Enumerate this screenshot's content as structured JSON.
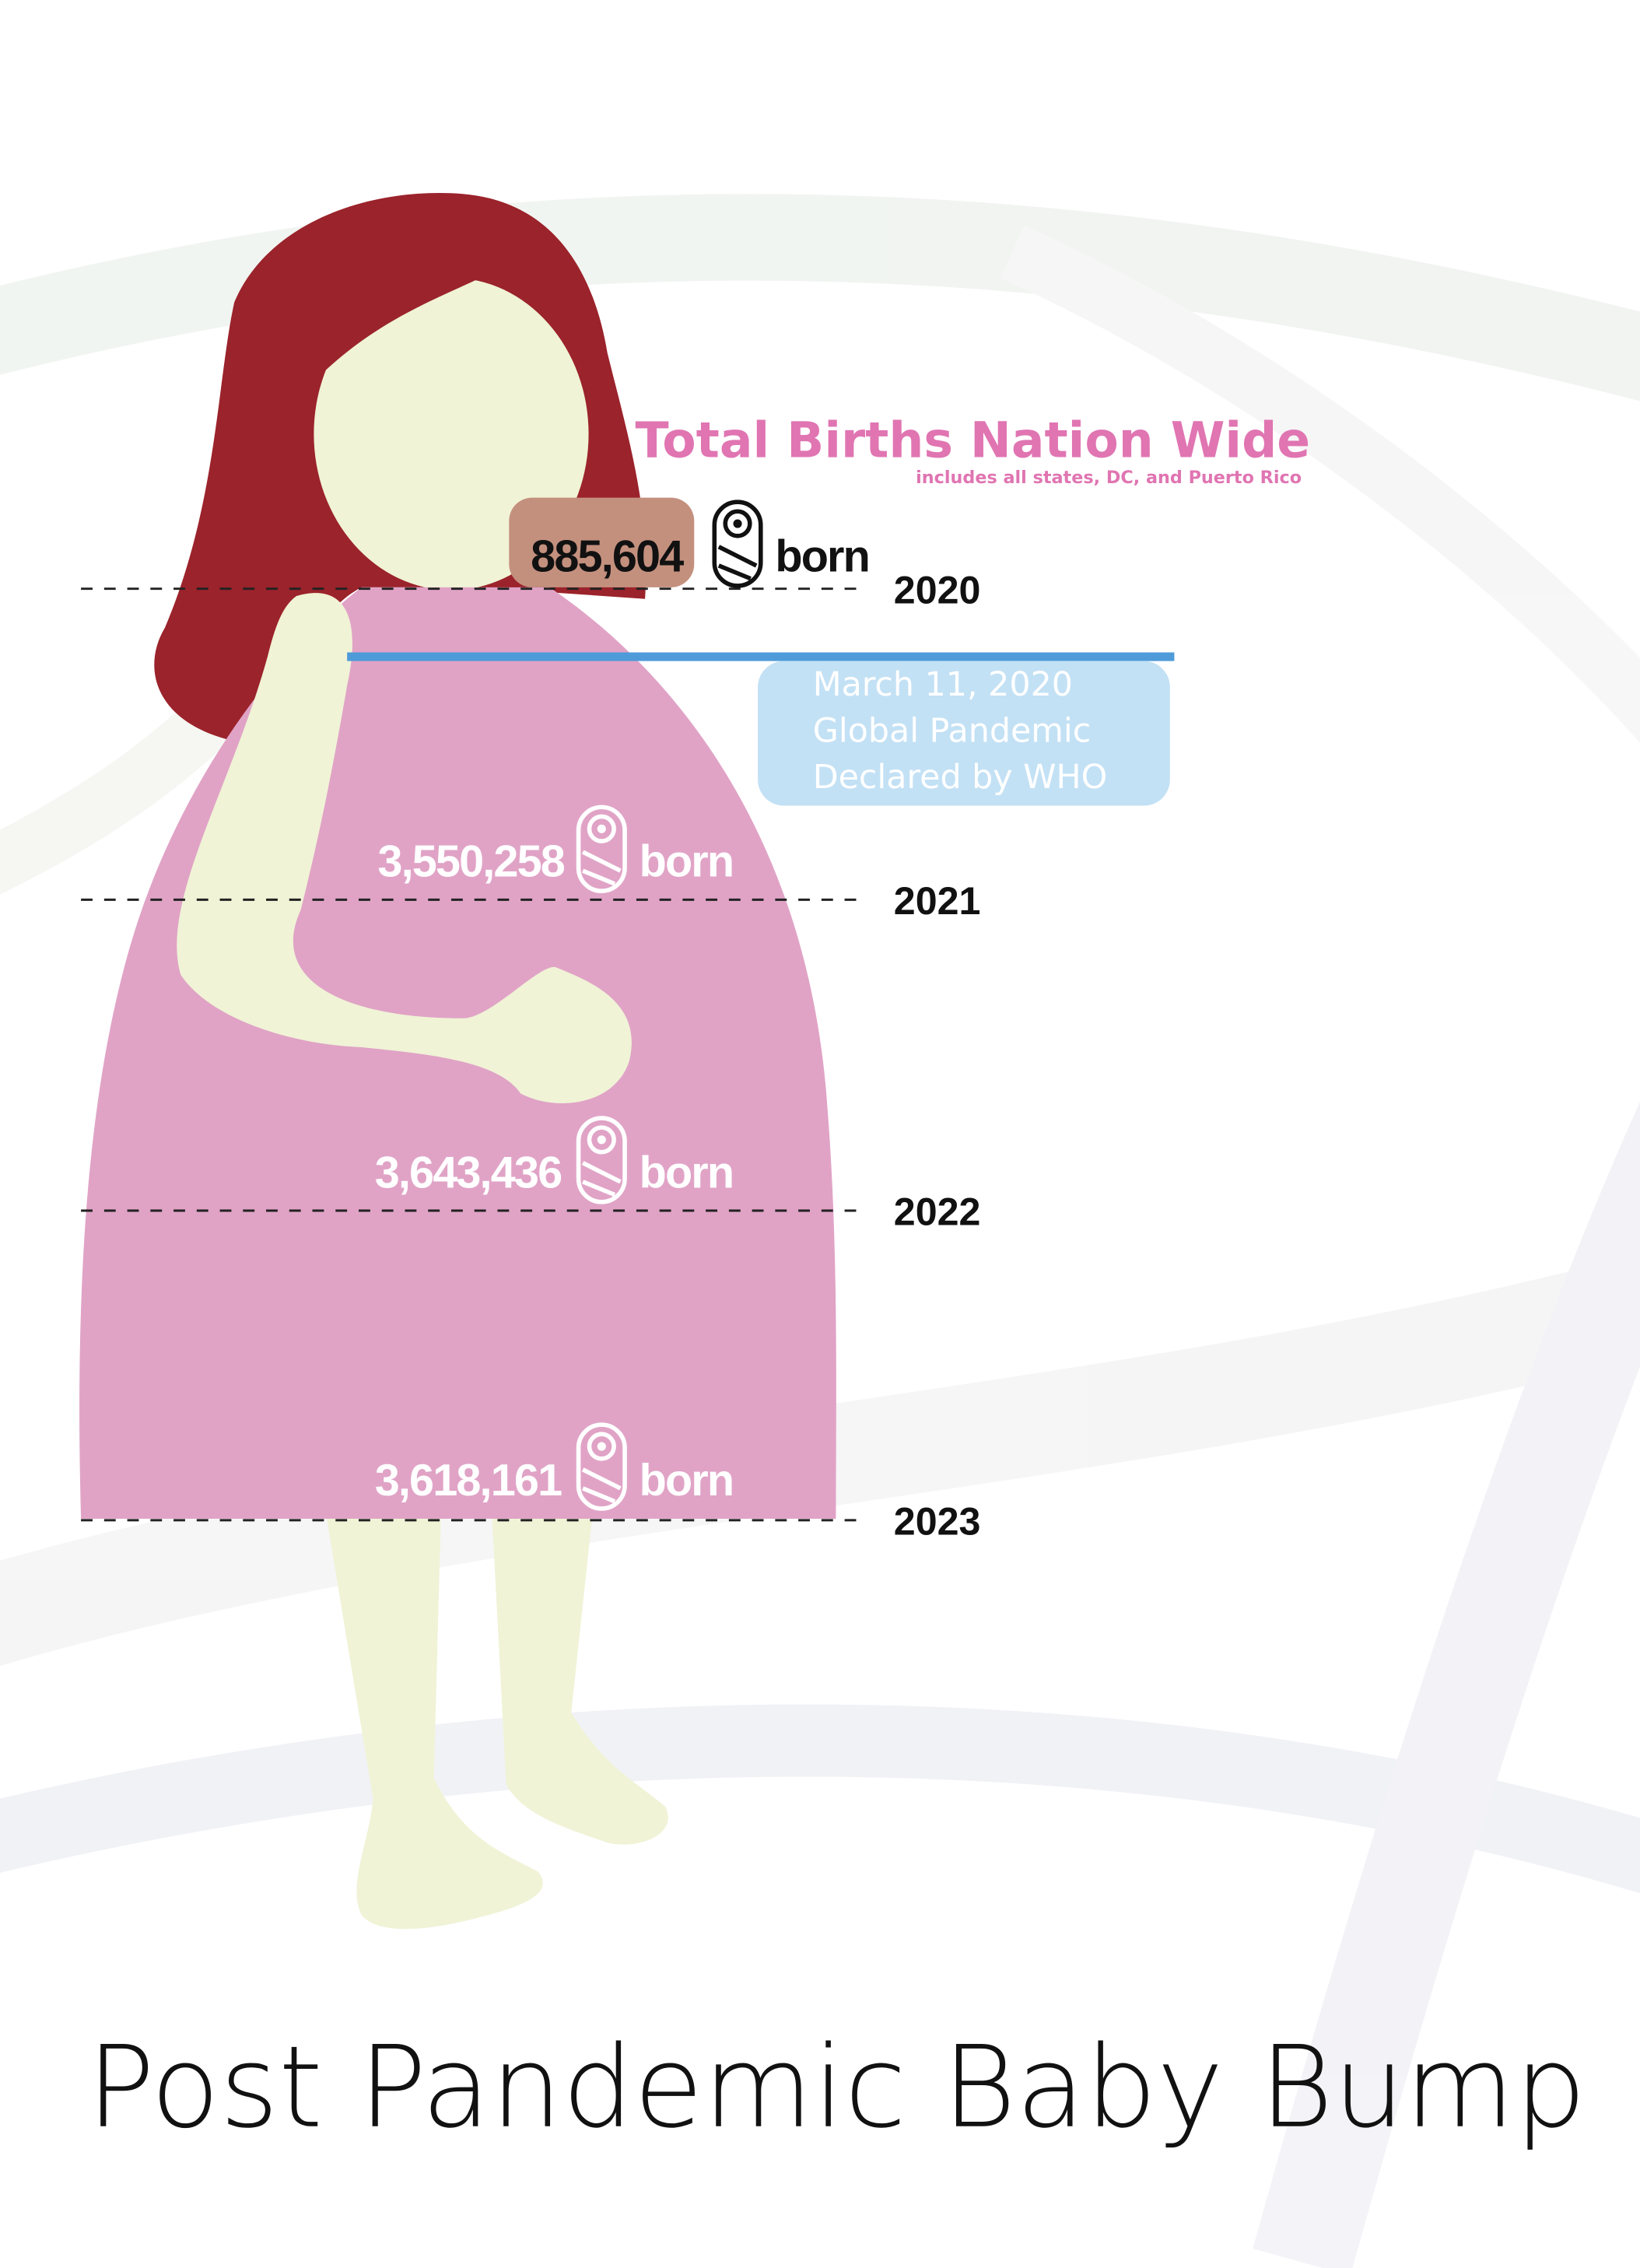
{
  "chart_data": {
    "type": "bar",
    "title": "Total Births Nation Wide",
    "subtitle": "includes all states, DC, and Puerto Rico",
    "unit_label": "born",
    "categories": [
      "2020",
      "2021",
      "2022",
      "2023"
    ],
    "values": [
      885604,
      3550258,
      3643436,
      3618161
    ],
    "value_labels": [
      "885,604",
      "3,550,258",
      "3,643,436",
      "3,618,161"
    ],
    "annotation": {
      "lines": [
        "March 11, 2020",
        "Global Pandemic",
        "Declared by WHO"
      ]
    }
  },
  "footer_title": "Post Pandemic Baby Bump",
  "colors": {
    "hair": "#9b232b",
    "skin": "#f0f3d6",
    "dress": "#e0a3c6",
    "title_pink": "#e075b2",
    "marker_blue": "#4f9bd9",
    "note_box": "#c3e1f5",
    "dark_text": "#111111",
    "label_white": "#ffffff"
  },
  "icons": [
    "swaddled-baby-icon"
  ]
}
